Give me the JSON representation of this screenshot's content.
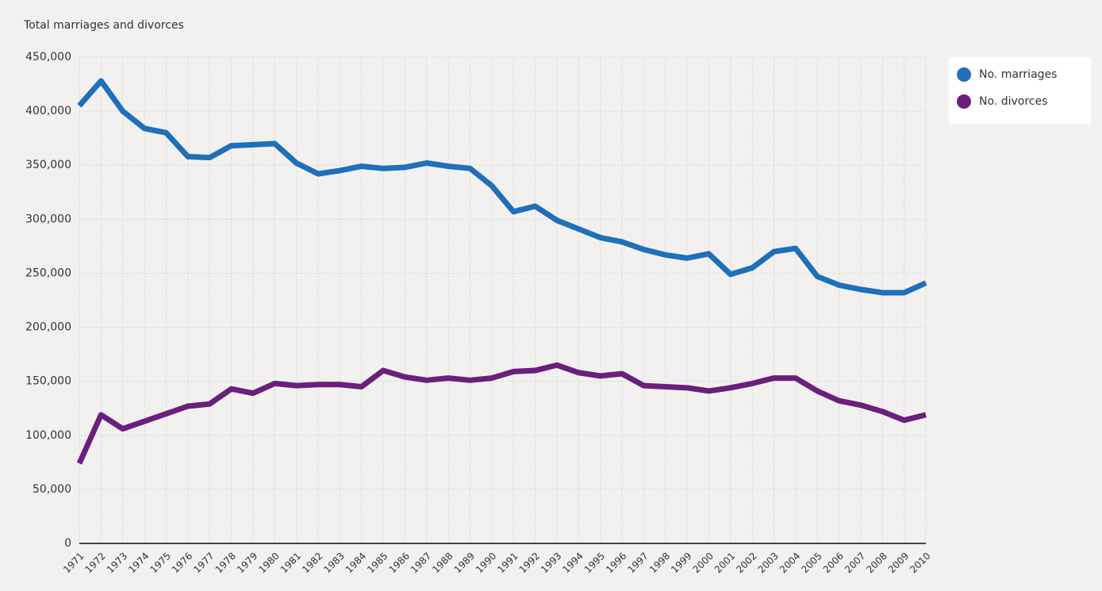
{
  "chart_data": {
    "type": "line",
    "title": "Total marriages and divorces",
    "x": [
      1971,
      1972,
      1973,
      1974,
      1975,
      1976,
      1977,
      1978,
      1979,
      1980,
      1981,
      1982,
      1983,
      1984,
      1985,
      1986,
      1987,
      1988,
      1989,
      1990,
      1991,
      1992,
      1993,
      1994,
      1995,
      1996,
      1997,
      1998,
      1999,
      2000,
      2001,
      2002,
      2003,
      2004,
      2005,
      2006,
      2007,
      2008,
      2009,
      2010
    ],
    "xlim": [
      1971,
      2010
    ],
    "xticks": [
      1971,
      1972,
      1973,
      1974,
      1975,
      1976,
      1977,
      1978,
      1979,
      1980,
      1981,
      1982,
      1983,
      1984,
      1985,
      1986,
      1987,
      1988,
      1989,
      1990,
      1991,
      1992,
      1993,
      1994,
      1995,
      1996,
      1997,
      1998,
      1999,
      2000,
      2001,
      2002,
      2003,
      2004,
      2005,
      2006,
      2007,
      2008,
      2009,
      2010
    ],
    "ylim": [
      0,
      450000
    ],
    "yticks": [
      0,
      {
        "value": 50000,
        "label": "50,000"
      },
      {
        "value": 100000,
        "label": "100,000"
      },
      {
        "value": 150000,
        "label": "150,000"
      },
      {
        "value": 200000,
        "label": "200,000"
      },
      {
        "value": 250000,
        "label": "250,000"
      },
      {
        "value": 300000,
        "label": "300,000"
      },
      {
        "value": 350000,
        "label": "350,000"
      },
      {
        "value": 400000,
        "label": "400,000"
      },
      {
        "value": 450000,
        "label": "450,000"
      }
    ],
    "grid": true,
    "legend": "right",
    "series": [
      {
        "name": "No. marriages",
        "color": "#1f6fba",
        "values": [
          405000,
          428000,
          400000,
          384000,
          380000,
          358000,
          357000,
          368000,
          369000,
          370000,
          352000,
          342000,
          345000,
          349000,
          347000,
          348000,
          352000,
          349000,
          347000,
          331000,
          307000,
          312000,
          299000,
          291000,
          283000,
          279000,
          272000,
          267000,
          264000,
          268000,
          249000,
          255000,
          270000,
          273000,
          247000,
          239000,
          235000,
          232000,
          232000,
          241000
        ]
      },
      {
        "name": "No. divorces",
        "color": "#6b1f7c",
        "values": [
          74000,
          119000,
          106000,
          113000,
          120000,
          127000,
          129000,
          143000,
          139000,
          148000,
          146000,
          147000,
          147000,
          145000,
          160000,
          154000,
          151000,
          153000,
          151000,
          153000,
          159000,
          160000,
          165000,
          158000,
          155000,
          157000,
          146000,
          145000,
          144000,
          141000,
          144000,
          148000,
          153000,
          153000,
          141000,
          132000,
          128000,
          122000,
          114000,
          119000
        ]
      }
    ]
  }
}
